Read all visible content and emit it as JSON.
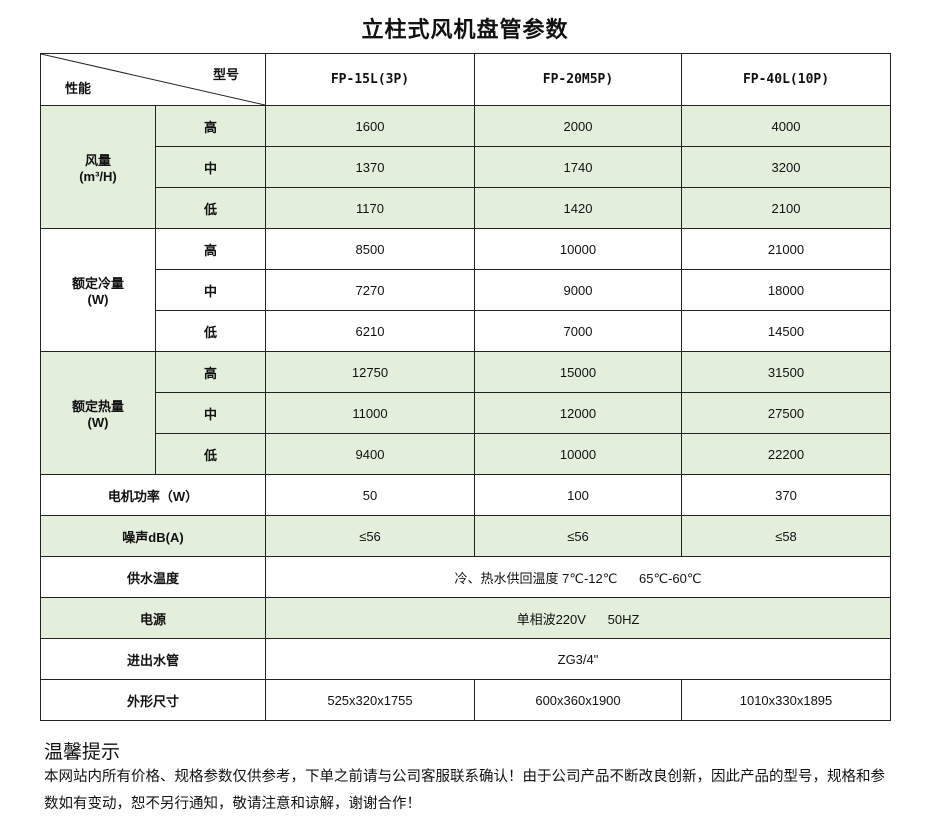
{
  "title": "立柱式风机盘管参数",
  "header": {
    "model_label": "型号",
    "perf_label": "性能",
    "models": [
      "FP-15L(3P)",
      "FP-20M5P)",
      "FP-40L(10P)"
    ]
  },
  "groups": [
    {
      "label": "风量",
      "unit": "(m³/H)",
      "green": true,
      "rows": [
        {
          "level": "高",
          "values": [
            "1600",
            "2000",
            "4000"
          ]
        },
        {
          "level": "中",
          "values": [
            "1370",
            "1740",
            "3200"
          ]
        },
        {
          "level": "低",
          "values": [
            "1170",
            "1420",
            "2100"
          ]
        }
      ]
    },
    {
      "label": "额定冷量",
      "unit": "(W)",
      "green": false,
      "rows": [
        {
          "level": "高",
          "values": [
            "8500",
            "10000",
            "21000"
          ]
        },
        {
          "level": "中",
          "values": [
            "7270",
            "9000",
            "18000"
          ]
        },
        {
          "level": "低",
          "values": [
            "6210",
            "7000",
            "14500"
          ]
        }
      ]
    },
    {
      "label": "额定热量",
      "unit": "(W)",
      "green": true,
      "rows": [
        {
          "level": "高",
          "values": [
            "12750",
            "15000",
            "31500"
          ]
        },
        {
          "level": "中",
          "values": [
            "11000",
            "12000",
            "27500"
          ]
        },
        {
          "level": "低",
          "values": [
            "9400",
            "10000",
            "22200"
          ]
        }
      ]
    }
  ],
  "single_rows": [
    {
      "label": "电机功率（W）",
      "green": false,
      "values": [
        "50",
        "100",
        "370"
      ]
    },
    {
      "label": "噪声dB(A)",
      "green": true,
      "values": [
        "≤56",
        "≤56",
        "≤58"
      ]
    },
    {
      "label": "供水温度",
      "green": false,
      "merged": "冷、热水供回温度 7℃-12℃      65℃-60℃"
    },
    {
      "label": "电源",
      "green": true,
      "merged": "单相波220V      50HZ"
    },
    {
      "label": "进出水管",
      "green": false,
      "merged": "ZG3/4\""
    },
    {
      "label": "外形尺寸",
      "green": false,
      "values": [
        "525x320x1755",
        "600x360x1900",
        "1010x330x1895"
      ]
    }
  ],
  "tip": {
    "heading": "温馨提示",
    "text": "本网站内所有价格、规格参数仅供参考，下单之前请与公司客服联系确认！由于公司产品不断改良创新，因此产品的型号，规格和参数如有变动，恕不另行通知，敬请注意和谅解，谢谢合作！"
  },
  "colors": {
    "green_row": "#e3eedb",
    "border": "#222222"
  }
}
